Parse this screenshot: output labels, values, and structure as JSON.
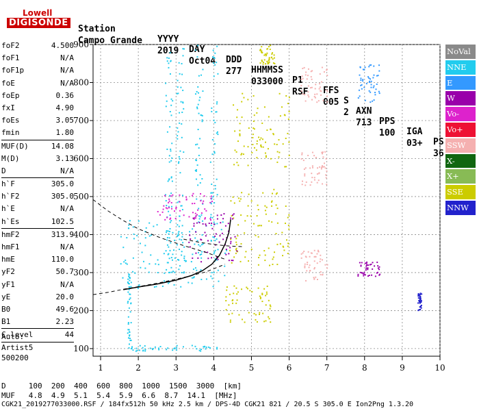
{
  "logo": {
    "line1": "Lowell",
    "line2": "DIGISONDE"
  },
  "header": {
    "labels": [
      "Station",
      "YYYY",
      "DAY",
      "DDD",
      "HHMMSS",
      "P1",
      "FFS",
      "S",
      "AXN",
      "PPS",
      "IGA",
      "PS"
    ],
    "values": [
      "Campo Grande",
      "2019",
      "Oct04",
      "277",
      "033000",
      "RSF",
      "005",
      "2",
      "713",
      "100",
      "03+",
      "36"
    ]
  },
  "params": {
    "group1": [
      {
        "name": "foF2",
        "value": "4.500"
      },
      {
        "name": "foF1",
        "value": "N/A"
      },
      {
        "name": "foF1p",
        "value": "N/A"
      },
      {
        "name": "foE",
        "value": "N/A"
      },
      {
        "name": "foEp",
        "value": "0.36"
      },
      {
        "name": "fxI",
        "value": "4.90"
      },
      {
        "name": "foEs",
        "value": "3.05"
      },
      {
        "name": "fmin",
        "value": "1.80"
      }
    ],
    "group2": [
      {
        "name": "MUF(D)",
        "value": "14.08"
      },
      {
        "name": "M(D)",
        "value": "3.13"
      },
      {
        "name": "D",
        "value": "N/A"
      }
    ],
    "group3": [
      {
        "name": "h`F",
        "value": "305.0"
      },
      {
        "name": "h`F2",
        "value": "305.0"
      },
      {
        "name": "h`E",
        "value": "N/A"
      },
      {
        "name": "h`Es",
        "value": "102.5"
      }
    ],
    "group4": [
      {
        "name": "hmF2",
        "value": "313.9"
      },
      {
        "name": "hmF1",
        "value": "N/A"
      },
      {
        "name": "hmE",
        "value": "110.0"
      },
      {
        "name": "yF2",
        "value": "50.7"
      },
      {
        "name": "yF1",
        "value": "N/A"
      },
      {
        "name": "yE",
        "value": "20.0"
      },
      {
        "name": "B0",
        "value": "49.6"
      },
      {
        "name": "B1",
        "value": "2.23"
      }
    ],
    "group5": [
      {
        "name": "C-level",
        "value": "44"
      }
    ]
  },
  "auto": [
    "Auto:",
    "Artist5",
    "500200"
  ],
  "legend": [
    {
      "label": "NoVal",
      "color": "#8a8a8a"
    },
    {
      "label": "NNE",
      "color": "#22ccee"
    },
    {
      "label": "E",
      "color": "#3399ff"
    },
    {
      "label": "W",
      "color": "#9900aa"
    },
    {
      "label": "Vo-",
      "color": "#dd22cc"
    },
    {
      "label": "Vo+",
      "color": "#ee1133"
    },
    {
      "label": "SSW",
      "color": "#f5b0b0"
    },
    {
      "label": "X-",
      "color": "#116611"
    },
    {
      "label": "X+",
      "color": "#88bb55"
    },
    {
      "label": "SSE",
      "color": "#cccc00"
    },
    {
      "label": "NNW",
      "color": "#2222cc"
    }
  ],
  "distance_table": {
    "row1": "D     100  200  400  600  800  1000  1500  3000  [km]",
    "row2": "MUF   4.8  4.9  5.1  5.4  5.9  6.6  8.7  14.1  [MHz]"
  },
  "footer": "CGK21_2019277033000.RSF / 184fx512h 50 kHz 2.5 km / DPS-4D CGK21 821 / 20.5 S 305.0 E Ion2Png 1.3.20",
  "chart_data": {
    "type": "scatter",
    "xlim": [
      0.8,
      10.0
    ],
    "ylim": [
      80,
      900
    ],
    "x_ticks": [
      1,
      2,
      3,
      4,
      5,
      6,
      7,
      8,
      9,
      10
    ],
    "y_ticks": [
      100,
      200,
      300,
      400,
      500,
      600,
      700,
      800,
      900
    ],
    "y_tick_labels": [
      "100",
      "200",
      "300",
      "400",
      "500",
      "600",
      "700",
      "800",
      "900"
    ],
    "grid": true,
    "xlabel": "",
    "ylabel": "",
    "profile_curve": {
      "x": [
        1.6,
        2.0,
        2.5,
        3.0,
        3.4,
        3.7,
        3.95,
        4.15,
        4.3,
        4.4,
        4.45
      ],
      "y": [
        255,
        262,
        270,
        280,
        292,
        305,
        322,
        345,
        375,
        405,
        440
      ]
    },
    "dashed_curves": [
      {
        "x": [
          0.8,
          1.2,
          1.6,
          2.0,
          2.6,
          3.2,
          3.8,
          4.3
        ],
        "y": [
          242,
          248,
          256,
          263,
          274,
          287,
          302,
          322
        ]
      },
      {
        "x": [
          0.8,
          1.2,
          1.6,
          2.0,
          2.6,
          3.2,
          3.8,
          4.3
        ],
        "y": [
          492,
          462,
          437,
          415,
          391,
          371,
          353,
          335
        ]
      },
      {
        "x": [
          3.2,
          3.6,
          4.0,
          4.4,
          4.8
        ],
        "y": [
          388,
          380,
          374,
          370,
          368
        ]
      }
    ],
    "echo_clusters": [
      {
        "id": "o-trace-F2-1",
        "color": "#22ccee",
        "x": [
          1.5,
          4.4
        ],
        "y": [
          260,
          440
        ]
      },
      {
        "id": "o-trace-vertical-1",
        "color": "#22ccee",
        "x": [
          3.9,
          4.1
        ],
        "y": [
          300,
          900
        ]
      },
      {
        "id": "o-trace-vertical-2",
        "color": "#22ccee",
        "x": [
          3.5,
          3.7
        ],
        "y": [
          300,
          900
        ]
      },
      {
        "id": "o-trace-vertical-3",
        "color": "#22ccee",
        "x": [
          3.0,
          3.2
        ],
        "y": [
          300,
          900
        ]
      },
      {
        "id": "o-trace-vertical-4",
        "color": "#22ccee",
        "x": [
          2.7,
          2.9
        ],
        "y": [
          300,
          900
        ]
      },
      {
        "id": "o-trace-vertical-5",
        "color": "#22ccee",
        "x": [
          1.7,
          1.8
        ],
        "y": [
          100,
          300
        ]
      },
      {
        "id": "sse-arch-1",
        "color": "#cccc00",
        "x": [
          4.3,
          5.5
        ],
        "y": [
          170,
          270
        ]
      },
      {
        "id": "sse-arch-2",
        "color": "#cccc00",
        "x": [
          4.4,
          6.0
        ],
        "y": [
          320,
          525
        ]
      },
      {
        "id": "sse-arch-3",
        "color": "#cccc00",
        "x": [
          4.5,
          6.0
        ],
        "y": [
          580,
          775
        ]
      },
      {
        "id": "sse-arch-4",
        "color": "#cccc00",
        "x": [
          5.2,
          5.6
        ],
        "y": [
          850,
          900
        ]
      },
      {
        "id": "w-cluster",
        "color": "#9900aa",
        "x": [
          3.3,
          4.6
        ],
        "y": [
          330,
          460
        ]
      },
      {
        "id": "vo-minus",
        "color": "#dd22cc",
        "x": [
          2.5,
          4.0
        ],
        "y": [
          440,
          510
        ]
      },
      {
        "id": "es-layer",
        "color": "#22ccee",
        "x": [
          1.8,
          4.2
        ],
        "y": [
          95,
          110
        ]
      },
      {
        "id": "ssw-cluster-1",
        "color": "#f5b0b0",
        "x": [
          6.3,
          7.0
        ],
        "y": [
          750,
          850
        ]
      },
      {
        "id": "ssw-cluster-2",
        "color": "#f5b0b0",
        "x": [
          6.3,
          7.0
        ],
        "y": [
          530,
          620
        ]
      },
      {
        "id": "ssw-cluster-3",
        "color": "#f5b0b0",
        "x": [
          6.3,
          7.0
        ],
        "y": [
          280,
          360
        ]
      },
      {
        "id": "e-cluster-8",
        "color": "#3399ff",
        "x": [
          7.8,
          8.4
        ],
        "y": [
          750,
          850
        ]
      },
      {
        "id": "w-cluster-8",
        "color": "#9900aa",
        "x": [
          7.8,
          8.4
        ],
        "y": [
          290,
          330
        ]
      },
      {
        "id": "nnw-9.5",
        "color": "#2222cc",
        "x": [
          9.4,
          9.5
        ],
        "y": [
          200,
          250
        ]
      }
    ]
  }
}
